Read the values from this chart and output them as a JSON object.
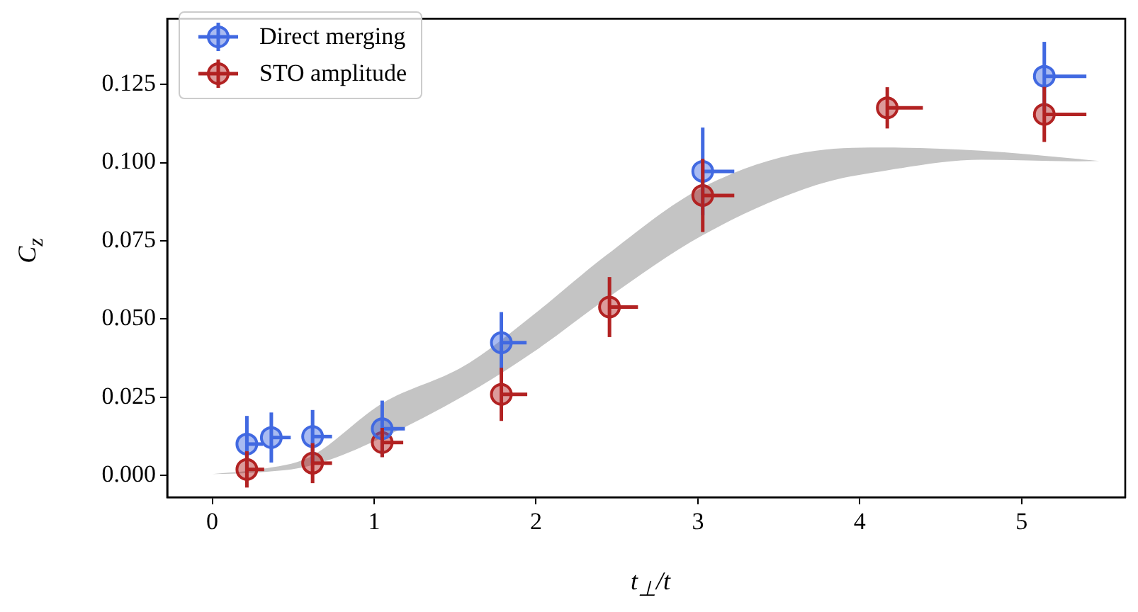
{
  "chart_data": {
    "type": "scatter",
    "xlabel": "t$_{⊥}$/t",
    "ylabel": "C$_{z}$",
    "xlim": [
      -0.278,
      5.64
    ],
    "ylim": [
      -0.007,
      0.146
    ],
    "xticks": [
      0,
      1,
      2,
      3,
      4,
      5
    ],
    "yticks": [
      {
        "value": 0,
        "label": "0.000"
      },
      {
        "value": 0.025,
        "label": "0.025"
      },
      {
        "value": 0.05,
        "label": "0.050"
      },
      {
        "value": 0.075,
        "label": "0.075"
      },
      {
        "value": 0.1,
        "label": "0.100"
      },
      {
        "value": 0.125,
        "label": "0.125"
      }
    ],
    "legend": "top left",
    "series": [
      {
        "type": "line",
        "marker": "none",
        "color": "#c4c4c4",
        "x": [
          0.0,
          0.3,
          0.6,
          1.05,
          1.56,
          2.0,
          2.43,
          3.03,
          3.73,
          4.17,
          4.75,
          5.32,
          5.48
        ],
        "lower": [
          0.0004,
          0.001,
          0.003,
          0.012,
          0.0256,
          0.04,
          0.0563,
          0.0768,
          0.0928,
          0.0975,
          0.1009,
          0.1004,
          0.1005
        ],
        "values": [
          null,
          null,
          null,
          null,
          null,
          null,
          null,
          null,
          null,
          null,
          null,
          null,
          null
        ],
        "upper": [
          0.0004,
          0.002,
          0.0058,
          0.023,
          0.0351,
          0.052,
          0.0702,
          0.0921,
          0.1038,
          0.1048,
          0.1038,
          0.1013,
          0.1005
        ]
      },
      {
        "name": "Direct merging",
        "marker": "circle",
        "color": "#4169e1",
        "x": [
          0.214,
          0.365,
          0.62,
          1.05,
          1.786,
          3.03,
          5.14
        ],
        "values": [
          0.01,
          0.0121,
          0.0124,
          0.0149,
          0.0424,
          0.0972,
          0.1276
        ],
        "errors": [
          0.009,
          0.008,
          0.0085,
          0.009,
          0.0098,
          0.014,
          0.011
        ],
        "xerrors": [
          [
            0.214,
            0.314
          ],
          [
            0.365,
            0.485
          ],
          [
            0.62,
            0.74
          ],
          [
            1.05,
            1.19
          ],
          [
            1.786,
            1.942
          ],
          [
            3.03,
            3.225
          ],
          [
            5.14,
            5.4
          ]
        ]
      },
      {
        "name": "STO amplitude",
        "marker": "circle",
        "color": "#b22222",
        "x": [
          0.214,
          0.62,
          1.05,
          1.786,
          2.454,
          3.03,
          4.17,
          5.14
        ],
        "values": [
          0.0019,
          0.0039,
          0.0105,
          0.0259,
          0.0538,
          0.0895,
          0.1175,
          0.1154
        ],
        "errors": [
          0.0058,
          0.0064,
          0.0047,
          0.0085,
          0.0096,
          0.0117,
          0.0066,
          0.0088
        ],
        "xerrors": [
          [
            0.214,
            0.321
          ],
          [
            0.62,
            0.74
          ],
          [
            1.05,
            1.18
          ],
          [
            1.786,
            1.946
          ],
          [
            2.454,
            2.63
          ],
          [
            3.03,
            3.225
          ],
          [
            4.17,
            4.39
          ],
          [
            5.14,
            5.4
          ]
        ]
      }
    ]
  }
}
